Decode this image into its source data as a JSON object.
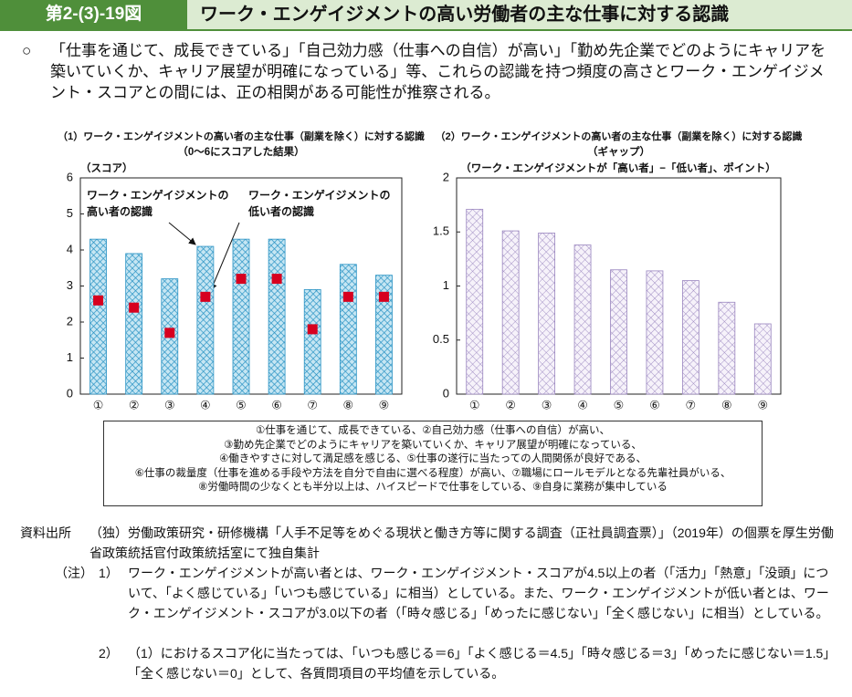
{
  "header": {
    "number": "第2-(3)-19図",
    "title": "ワーク・エンゲイジメントの高い労働者の主な仕事に対する認識"
  },
  "summary": {
    "bullet": "○",
    "text": "「仕事を通じて、成長できている」「自己効力感（仕事への自信）が高い」「勤め先企業でどのようにキャリアを築いていくか、キャリア展望が明確になっている」等、これらの認識を持つ頻度の高さとワーク・エンゲイジメント・スコアとの間には、正の相関がある可能性が推察される。"
  },
  "chart_data": [
    {
      "type": "bar",
      "title": "（1）ワーク・エンゲイジメントの高い者の主な仕事（副業を除く）に対する認識",
      "subtitle": "（0～6にスコアした結果）",
      "ylabel": "（スコア）",
      "categories": [
        "①",
        "②",
        "③",
        "④",
        "⑤",
        "⑥",
        "⑦",
        "⑧",
        "⑨"
      ],
      "series": [
        {
          "name": "ワーク・エンゲイジメントの高い者の認識",
          "color": "#2a93c4",
          "values": [
            4.3,
            3.9,
            3.2,
            4.1,
            4.3,
            4.3,
            2.9,
            3.6,
            3.3
          ]
        },
        {
          "name": "ワーク・エンゲイジメントの低い者の認識",
          "color": "#d7001f",
          "marker": "square",
          "values": [
            2.6,
            2.4,
            1.7,
            2.7,
            3.2,
            3.2,
            1.8,
            2.7,
            2.7
          ]
        }
      ],
      "ylim": [
        0,
        6
      ],
      "yticks": [
        0,
        1,
        2,
        3,
        4,
        5,
        6
      ]
    },
    {
      "type": "bar",
      "title": "（2）ワーク・エンゲイジメントの高い者の主な仕事（副業を除く）に対する認識",
      "subtitle": "（ギャップ）",
      "ylabel": "（ワーク・エンゲイジメントが「高い者」−「低い者」、ポイント）",
      "categories": [
        "①",
        "②",
        "③",
        "④",
        "⑤",
        "⑥",
        "⑦",
        "⑧",
        "⑨"
      ],
      "series": [
        {
          "color": "#9a86bf",
          "values": [
            1.71,
            1.51,
            1.49,
            1.38,
            1.15,
            1.14,
            1.05,
            0.85,
            0.65
          ]
        }
      ],
      "ylim": [
        0,
        2
      ],
      "yticks": [
        0,
        0.5,
        1,
        1.5,
        2
      ]
    }
  ],
  "legend_box": {
    "lines": [
      "①仕事を通じて、成長できている、②自己効力感（仕事への自信）が高い、",
      "③勤め先企業でどのようにキャリアを築いていくか、キャリア展望が明確になっている、",
      "④働きやすさに対して満足感を感じる、⑤仕事の遂行に当たっての人間関係が良好である、",
      "⑥仕事の裁量度（仕事を進める手段や方法を自分で自由に選べる程度）が高い、⑦職場にロールモデルとなる先輩社員がいる、",
      "⑧労働時間の少なくとも半分以上は、ハイスピードで仕事をしている、⑨自身に業務が集中している"
    ]
  },
  "source": {
    "label": "資料出所",
    "text": "（独）労働政策研究・研修機構「人手不足等をめぐる現状と働き方等に関する調査（正社員調査票）」（2019年）の個票を厚生労働省政策統括官付政策統括室にて独自集計"
  },
  "notes": {
    "label": "（注）",
    "items": [
      {
        "number": "1）",
        "text": "ワーク・エンゲイジメントが高い者とは、ワーク・エンゲイジメント・スコアが4.5以上の者（「活力」「熱意」「没頭」について、「よく感じている」「いつも感じている」に相当）としている。また、ワーク・エンゲイジメントが低い者とは、ワーク・エンゲイジメント・スコアが3.0以下の者（「時々感じる」「めったに感じない」「全く感じない」に相当）としている。"
      },
      {
        "number": "2）",
        "text": "（1）におけるスコア化に当たっては、「いつも感じる＝6」「よく感じる＝4.5」「時々感じる＝3」「めったに感じない＝1.5」「全く感じない＝0」として、各質問項目の平均値を示している。"
      }
    ]
  }
}
